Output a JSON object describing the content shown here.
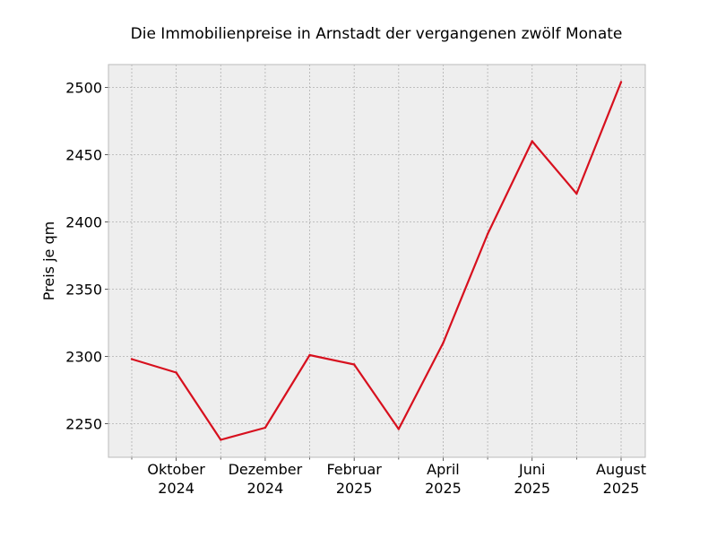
{
  "chart_data": {
    "type": "line",
    "title": "Die Immobilienpreise in Arnstadt der vergangenen zwölf Monate",
    "xlabel": "",
    "ylabel": "Preis je qm",
    "x": [
      "2024-09",
      "2024-10",
      "2024-11",
      "2024-12",
      "2025-01",
      "2025-02",
      "2025-03",
      "2025-04",
      "2025-05",
      "2025-06",
      "2025-07",
      "2025-08"
    ],
    "x_tick_labels": [
      {
        "x": "2024-10",
        "lines": [
          "Oktober",
          "2024"
        ]
      },
      {
        "x": "2024-12",
        "lines": [
          "Dezember",
          "2024"
        ]
      },
      {
        "x": "2025-02",
        "lines": [
          "Februar",
          "2025"
        ]
      },
      {
        "x": "2025-04",
        "lines": [
          "April",
          "2025"
        ]
      },
      {
        "x": "2025-06",
        "lines": [
          "Juni",
          "2025"
        ]
      },
      {
        "x": "2025-08",
        "lines": [
          "August",
          "2025"
        ]
      }
    ],
    "series": [
      {
        "values": [
          2298,
          2288,
          2238,
          2247,
          2301,
          2294,
          2246,
          2310,
          2391,
          2460,
          2421,
          2504
        ]
      }
    ],
    "ylim": [
      2225,
      2517
    ],
    "yticks": [
      2250,
      2300,
      2350,
      2400,
      2450,
      2500
    ],
    "grid": true,
    "legend": "none",
    "colors": {
      "line": "#d7101e",
      "plot_background": "#eeeeee",
      "grid": "#b0b0b0",
      "frame": "#bbbbbb"
    }
  }
}
